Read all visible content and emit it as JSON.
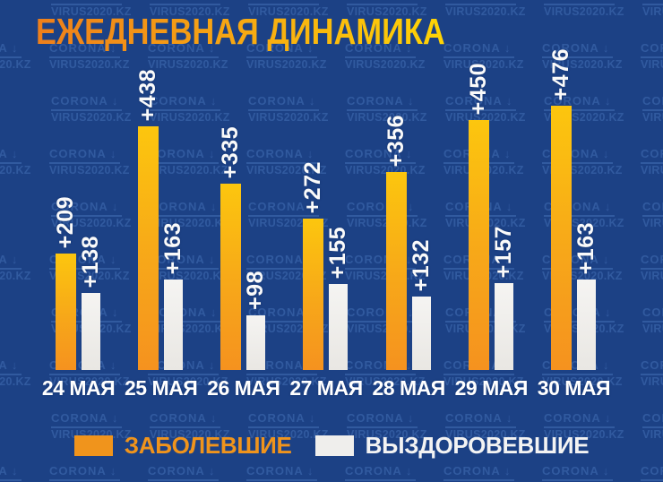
{
  "title": "ЕЖЕДНЕВНАЯ ДИНАМИКА",
  "watermark": {
    "line1": "CORONA ↓",
    "line2": "VIRUS2020.KZ"
  },
  "chart_data": {
    "type": "bar",
    "title": "ЕЖЕДНЕВНАЯ ДИНАМИКА",
    "categories": [
      "24 МАЯ",
      "25 МАЯ",
      "26 МАЯ",
      "27 МАЯ",
      "28 МАЯ",
      "29 МАЯ",
      "30 МАЯ"
    ],
    "series": [
      {
        "name": "ЗАБОЛЕВШИЕ",
        "color": "#f59d1e",
        "values": [
          209,
          438,
          335,
          272,
          356,
          450,
          476
        ]
      },
      {
        "name": "ВЫЗДОРОВЕВШИЕ",
        "color": "#efeeec",
        "values": [
          138,
          163,
          98,
          155,
          132,
          157,
          163
        ]
      }
    ],
    "value_prefix": "+",
    "data_labels": true,
    "xlabel": "",
    "ylabel": "",
    "ylim": [
      0,
      500
    ],
    "grid": false,
    "legend_position": "bottom"
  },
  "legend": {
    "items": [
      {
        "label": "ЗАБОЛЕВШИЕ",
        "color": "#f0941c"
      },
      {
        "label": "ВЫЗДОРОВЕВШИЕ",
        "color": "#efeeec"
      }
    ]
  },
  "colors": {
    "background": "#1c4185",
    "watermark_text": "#6294de",
    "bar_orange_top": "#fcc60e",
    "bar_orange_bottom": "#f5921f",
    "bar_white": "#efeeec",
    "title_gradient_start": "#ee7f1b",
    "title_gradient_end": "#ffd405",
    "label_text": "#ffffff"
  }
}
